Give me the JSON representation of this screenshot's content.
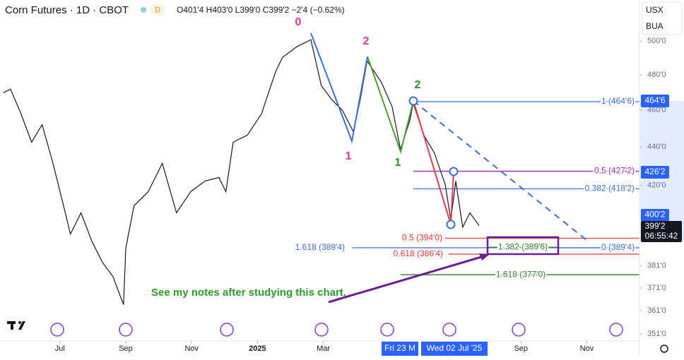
{
  "chart_data": {
    "type": "line",
    "title": "Corn Futures · 1D · CBOT",
    "interval_badge": "D",
    "ohlc_text": "O401'4 H403'0 L399'0 C399'2 −2'4 (−0.62%)",
    "log_scale": true,
    "color": "#131722",
    "x": [
      -1.72,
      -1.5,
      -1.18,
      -0.86,
      -0.54,
      -0.21,
      0.11,
      0.32,
      0.64,
      0.97,
      1.29,
      1.61,
      1.93,
      2.0,
      2.25,
      2.68,
      3.11,
      3.54,
      3.97,
      4.4,
      4.83,
      5.04,
      5.26,
      5.69,
      6.12,
      6.55,
      6.76,
      7.19,
      7.62,
      7.94,
      8.26,
      8.58,
      8.91,
      9.12,
      9.33,
      9.76,
      10.09,
      10.34,
      10.62,
      10.73,
      11.05,
      11.37,
      11.7,
      11.87,
      12.02,
      12.23,
      12.45,
      12.73
    ],
    "values": [
      469.8,
      471.8,
      457.9,
      442.5,
      452.0,
      431.3,
      409.8,
      396.0,
      406.3,
      392.6,
      382.7,
      376.2,
      363.6,
      389.3,
      409.8,
      416.8,
      431.3,
      406.3,
      416.8,
      422.2,
      424.0,
      416.8,
      442.5,
      446.3,
      457.9,
      481.9,
      490.3,
      496.6,
      500.9,
      473.8,
      465.8,
      459.8,
      448.2,
      465.8,
      488.2,
      475.8,
      461.8,
      438.7,
      453.9,
      463.8,
      446.3,
      436.8,
      420.4,
      402.8,
      422.2,
      399.3,
      406.3,
      400.0
    ],
    "xlim": [
      -1.82,
      17.6
    ],
    "xticks": [
      {
        "value": 0,
        "label": "Jul"
      },
      {
        "value": 2,
        "label": "Sep"
      },
      {
        "value": 4,
        "label": "Nov"
      },
      {
        "value": 6,
        "label": "2025"
      },
      {
        "value": 8,
        "label": "Mar"
      },
      {
        "value": 14,
        "label": "Sep"
      },
      {
        "value": 16,
        "label": "Nov"
      }
    ],
    "ylim": [
      348,
      525.5
    ],
    "yticks": [
      {
        "value": 351,
        "label": "351'0"
      },
      {
        "value": 361,
        "label": "361'0"
      },
      {
        "value": 371,
        "label": "371'0"
      },
      {
        "value": 381,
        "label": "381'0"
      },
      {
        "value": 420,
        "label": "420'0"
      },
      {
        "value": 440,
        "label": "440'0"
      },
      {
        "value": 460,
        "label": "460'0"
      },
      {
        "value": 480,
        "label": "480'0"
      },
      {
        "value": 500,
        "label": "500'0"
      }
    ],
    "fib_levels": [
      {
        "value": 464.75,
        "label": "1 (464'6)",
        "color": "#3d6fd6"
      },
      {
        "value": 427.25,
        "label": "0.5 (427'2)",
        "color": "#9c27b0"
      },
      {
        "value": 418.25,
        "label": "0.382 (418'2)",
        "color": "#3d6fd6"
      },
      {
        "value": 394,
        "label": "0.5 (394'0)",
        "color": "#e53935"
      },
      {
        "value": 389.5,
        "label": "1.618 (389'4)",
        "color": "#3d6fd6"
      },
      {
        "value": 389.5,
        "label": "0 (389'4)",
        "color": "#3d6fd6"
      },
      {
        "value": 386.5,
        "label": "0.618 (386'4)",
        "color": "#e53935"
      },
      {
        "value": 389.75,
        "label": "1.382 (389'6)",
        "color": "#2e7d32"
      },
      {
        "value": 377,
        "label": "1.618 (377'0)",
        "color": "#2e7d32"
      }
    ],
    "wave_labels": [
      "0",
      "2",
      "1",
      "2",
      "1"
    ],
    "price_tags": [
      "464'6",
      "426'2",
      "400'2",
      "399'2",
      "06:55:42"
    ],
    "currency": "USX",
    "unit": "BUA",
    "crosshair_labels": [
      "Fri 23 M",
      "Wed 02 Jul '25"
    ],
    "note": "See my notes after studying this chart."
  }
}
